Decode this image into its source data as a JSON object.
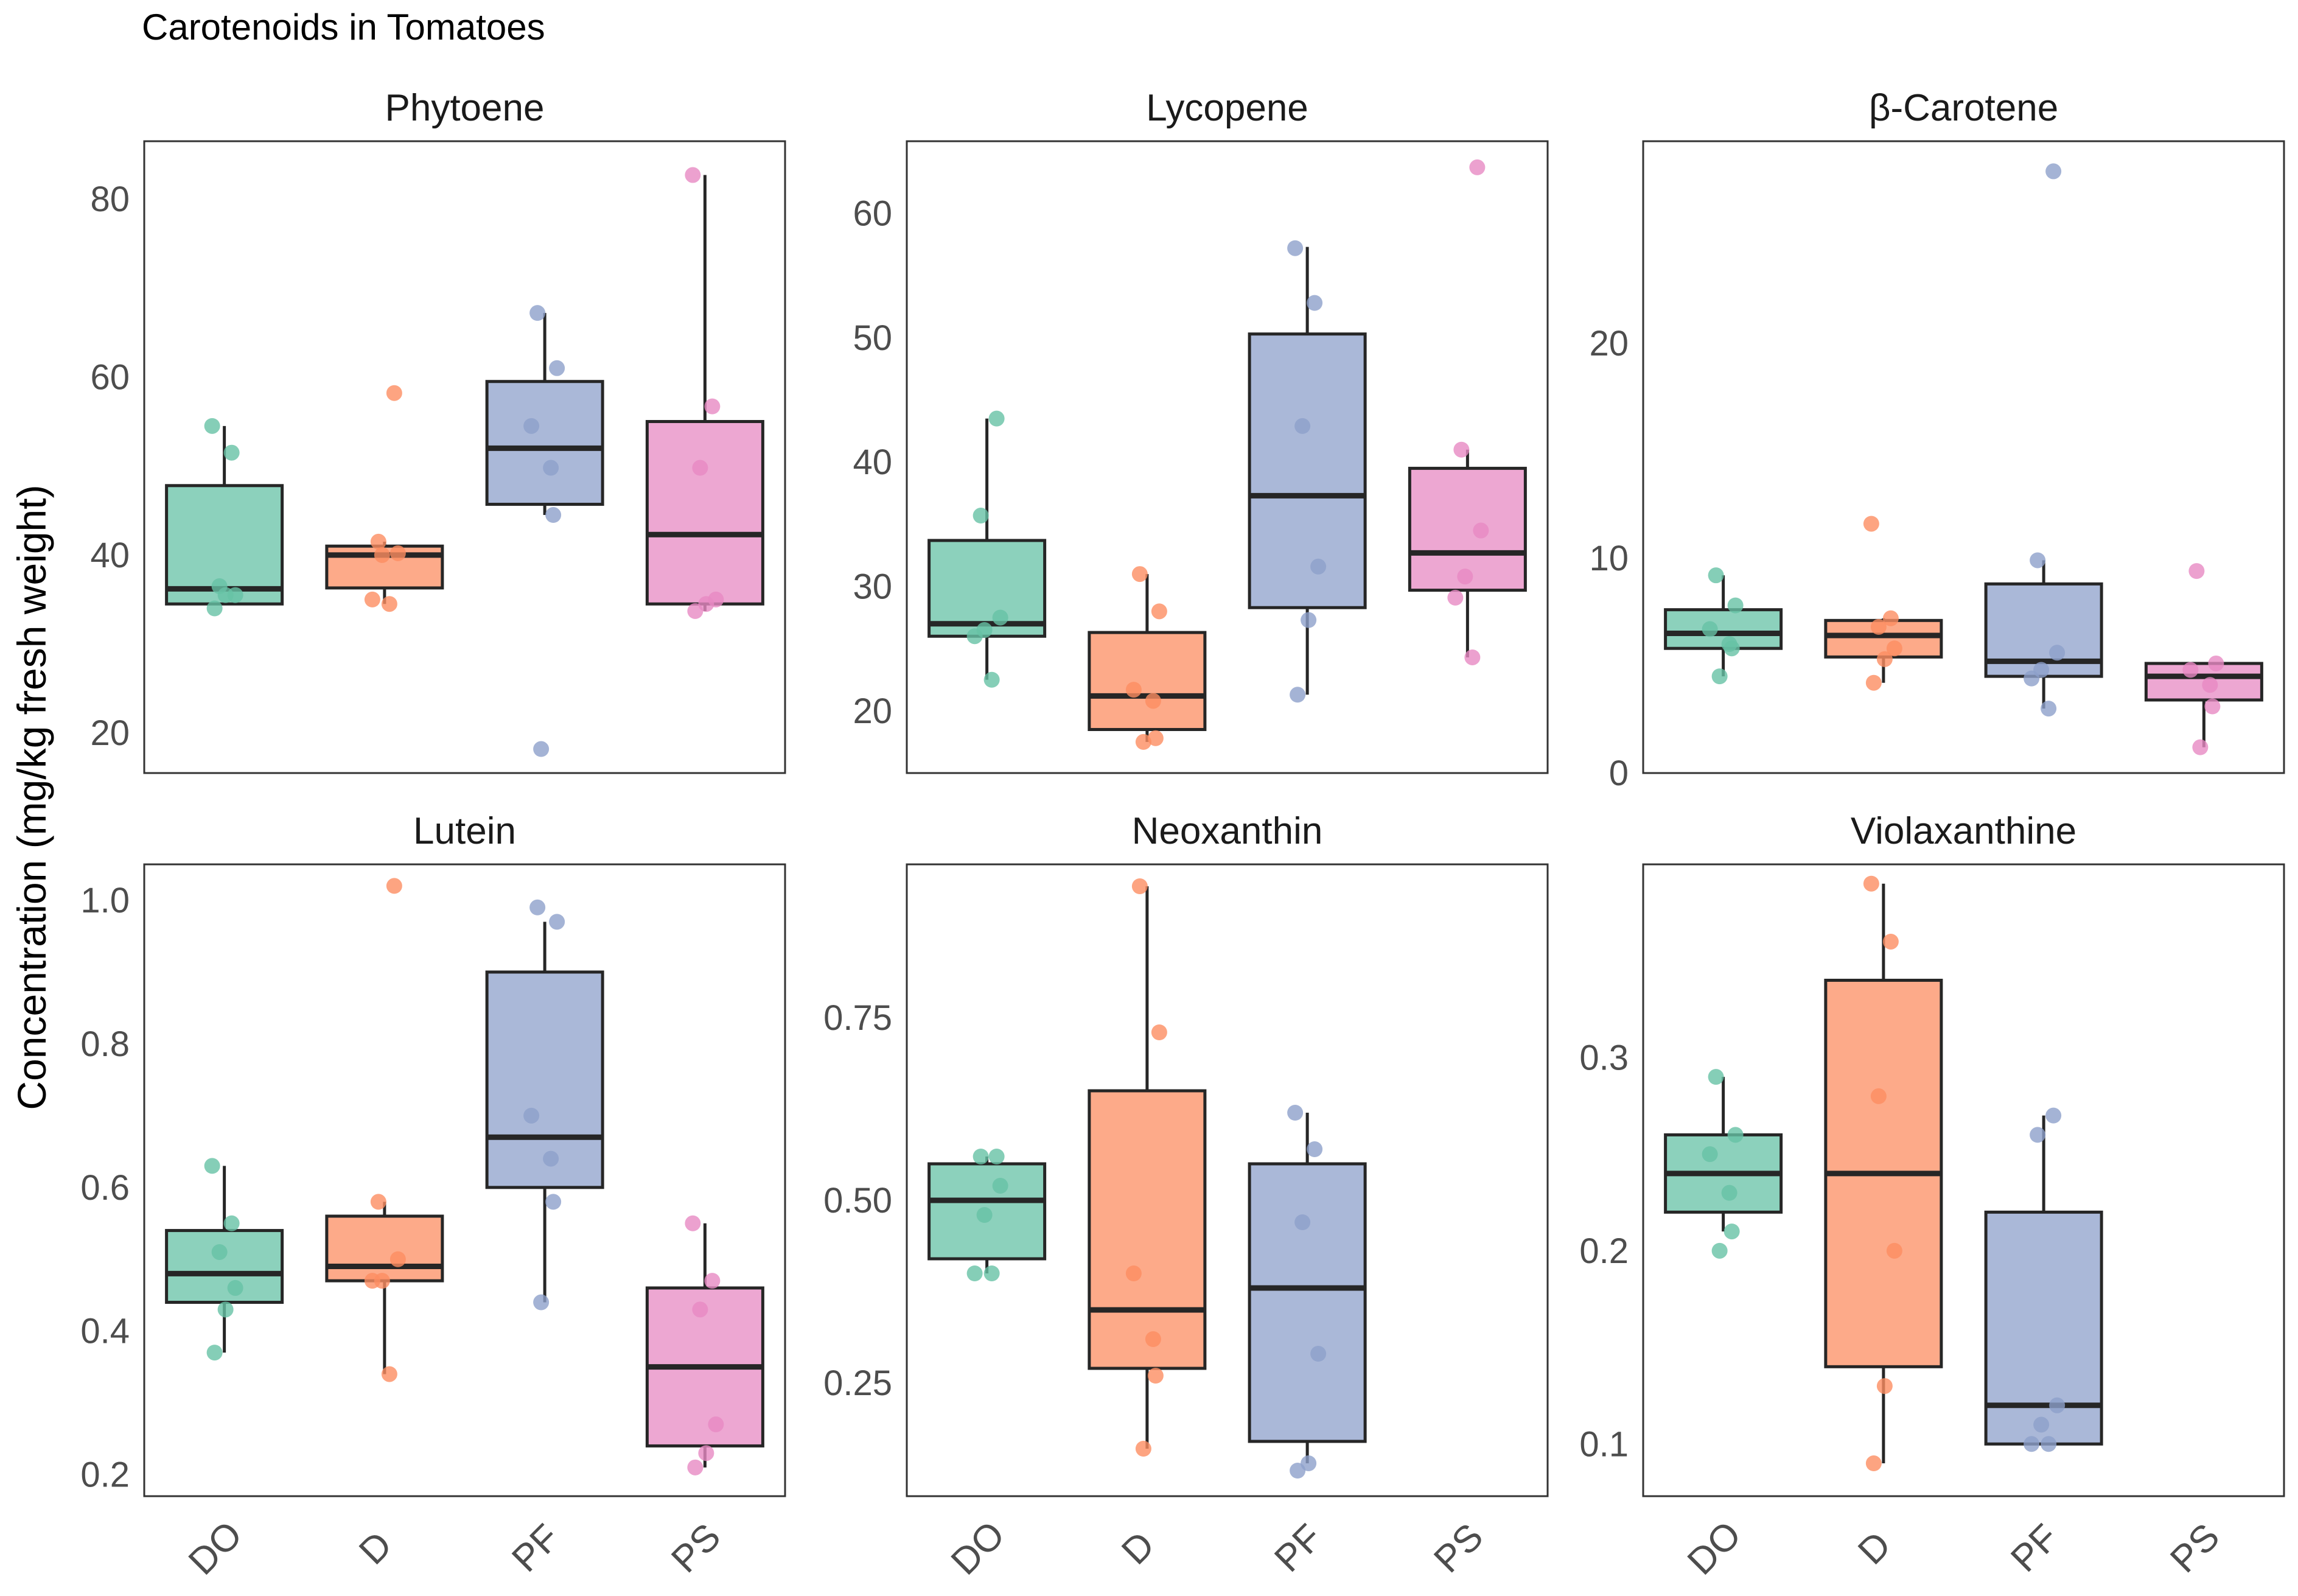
{
  "chart_data": {
    "type": "box",
    "title": "Carotenoids in Tomatoes",
    "ylabel": "Concentration (mg/kg fresh weight)",
    "categories": [
      "DO",
      "D",
      "PF",
      "PS"
    ],
    "colors": {
      "DO": "#66C2A5",
      "D": "#FC8D62",
      "PF": "#8DA0CB",
      "PS": "#E78AC3"
    },
    "panels": [
      {
        "name": "Phytoene",
        "ylim": [
          15.5,
          86.5
        ],
        "yticks": [
          20,
          40,
          60,
          80
        ],
        "boxes": [
          {
            "group": "DO",
            "min": 34.5,
            "q1": 34.5,
            "median": 36.2,
            "q3": 47.8,
            "max": 54.5,
            "points": [
              54.5,
              51.5,
              36.5,
              35.5,
              35.5,
              34.0
            ]
          },
          {
            "group": "D",
            "min": 34.5,
            "q1": 36.3,
            "median": 40.0,
            "q3": 41.0,
            "max": 41.5,
            "points": [
              58.2,
              41.5,
              40.2,
              40.0,
              35.0,
              34.5
            ]
          },
          {
            "group": "PF",
            "min": 44.5,
            "q1": 45.7,
            "median": 52.0,
            "q3": 59.5,
            "max": 67.2,
            "points": [
              67.2,
              61.0,
              54.5,
              49.8,
              44.5,
              18.2
            ]
          },
          {
            "group": "PS",
            "min": 33.7,
            "q1": 34.5,
            "median": 42.3,
            "q3": 55.0,
            "max": 82.7,
            "points": [
              82.7,
              56.7,
              49.8,
              35.0,
              34.5,
              33.7
            ]
          }
        ]
      },
      {
        "name": "Lycopene",
        "ylim": [
          15.0,
          65.8
        ],
        "yticks": [
          20,
          30,
          40,
          50,
          60
        ],
        "boxes": [
          {
            "group": "DO",
            "min": 22.5,
            "q1": 26.0,
            "median": 27.0,
            "q3": 33.7,
            "max": 43.5,
            "points": [
              43.5,
              35.7,
              27.5,
              26.5,
              26.0,
              22.5
            ]
          },
          {
            "group": "D",
            "min": 17.5,
            "q1": 18.5,
            "median": 21.2,
            "q3": 26.3,
            "max": 31.0,
            "points": [
              31.0,
              28.0,
              21.7,
              20.8,
              17.8,
              17.5
            ]
          },
          {
            "group": "PF",
            "min": 21.3,
            "q1": 28.3,
            "median": 37.3,
            "q3": 50.3,
            "max": 57.3,
            "points": [
              57.2,
              52.8,
              42.9,
              31.6,
              27.3,
              21.3
            ]
          },
          {
            "group": "PS",
            "min": 24.3,
            "q1": 29.7,
            "median": 32.7,
            "q3": 39.5,
            "max": 41.0,
            "points": [
              63.7,
              41.0,
              34.5,
              30.8,
              29.1,
              24.3
            ]
          }
        ]
      },
      {
        "name": "β-Carotene",
        "ylim": [
          0.0,
          29.4
        ],
        "yticks": [
          0,
          10,
          20
        ],
        "boxes": [
          {
            "group": "DO",
            "min": 4.5,
            "q1": 5.8,
            "median": 6.5,
            "q3": 7.6,
            "max": 9.2,
            "points": [
              9.2,
              7.8,
              6.7,
              6.0,
              5.8,
              4.5
            ]
          },
          {
            "group": "D",
            "min": 4.2,
            "q1": 5.4,
            "median": 6.4,
            "q3": 7.1,
            "max": 7.2,
            "points": [
              11.6,
              7.2,
              6.8,
              5.8,
              5.3,
              4.2
            ]
          },
          {
            "group": "PF",
            "min": 3.0,
            "q1": 4.5,
            "median": 5.2,
            "q3": 8.8,
            "max": 9.9,
            "points": [
              28.0,
              9.9,
              5.6,
              4.8,
              4.4,
              3.0
            ]
          },
          {
            "group": "PS",
            "min": 1.2,
            "q1": 3.4,
            "median": 4.5,
            "q3": 5.1,
            "max": 5.1,
            "points": [
              9.4,
              5.1,
              4.8,
              4.1,
              3.1,
              1.2
            ]
          }
        ]
      },
      {
        "name": "Lutein",
        "ylim": [
          0.17,
          1.05
        ],
        "yticks": [
          0.2,
          0.4,
          0.6,
          0.8,
          1.0
        ],
        "boxes": [
          {
            "group": "DO",
            "min": 0.37,
            "q1": 0.44,
            "median": 0.48,
            "q3": 0.54,
            "max": 0.63,
            "points": [
              0.63,
              0.55,
              0.51,
              0.46,
              0.43,
              0.37
            ]
          },
          {
            "group": "D",
            "min": 0.34,
            "q1": 0.47,
            "median": 0.49,
            "q3": 0.56,
            "max": 0.58,
            "points": [
              1.02,
              0.58,
              0.5,
              0.47,
              0.47,
              0.34
            ]
          },
          {
            "group": "PF",
            "min": 0.44,
            "q1": 0.6,
            "median": 0.67,
            "q3": 0.9,
            "max": 0.97,
            "points": [
              0.99,
              0.97,
              0.7,
              0.64,
              0.58,
              0.44
            ]
          },
          {
            "group": "PS",
            "min": 0.21,
            "q1": 0.24,
            "median": 0.35,
            "q3": 0.46,
            "max": 0.55,
            "points": [
              0.55,
              0.47,
              0.43,
              0.27,
              0.23,
              0.21
            ]
          }
        ]
      },
      {
        "name": "Neoxanthin",
        "ylim": [
          0.095,
          0.96
        ],
        "yticks": [
          0.25,
          0.5,
          0.75
        ],
        "boxes": [
          {
            "group": "DO",
            "min": 0.4,
            "q1": 0.42,
            "median": 0.5,
            "q3": 0.55,
            "max": 0.56,
            "points": [
              0.56,
              0.56,
              0.52,
              0.48,
              0.4,
              0.4
            ]
          },
          {
            "group": "D",
            "min": 0.16,
            "q1": 0.27,
            "median": 0.35,
            "q3": 0.65,
            "max": 0.93,
            "points": [
              0.93,
              0.73,
              0.4,
              0.31,
              0.26,
              0.16
            ]
          },
          {
            "group": "PF",
            "min": 0.14,
            "q1": 0.17,
            "median": 0.38,
            "q3": 0.55,
            "max": 0.62,
            "points": [
              0.62,
              0.57,
              0.47,
              0.29,
              0.14,
              0.13
            ]
          }
        ]
      },
      {
        "name": "Violaxanthine",
        "ylim": [
          0.073,
          0.4
        ],
        "yticks": [
          0.1,
          0.2,
          0.3
        ],
        "boxes": [
          {
            "group": "DO",
            "min": 0.21,
            "q1": 0.22,
            "median": 0.24,
            "q3": 0.26,
            "max": 0.29,
            "points": [
              0.29,
              0.26,
              0.25,
              0.23,
              0.21,
              0.2
            ]
          },
          {
            "group": "D",
            "min": 0.09,
            "q1": 0.14,
            "median": 0.24,
            "q3": 0.34,
            "max": 0.39,
            "points": [
              0.39,
              0.36,
              0.28,
              0.2,
              0.13,
              0.09
            ]
          },
          {
            "group": "PF",
            "min": 0.1,
            "q1": 0.1,
            "median": 0.12,
            "q3": 0.22,
            "max": 0.27,
            "points": [
              0.27,
              0.26,
              0.12,
              0.11,
              0.1,
              0.1
            ]
          }
        ]
      }
    ]
  }
}
